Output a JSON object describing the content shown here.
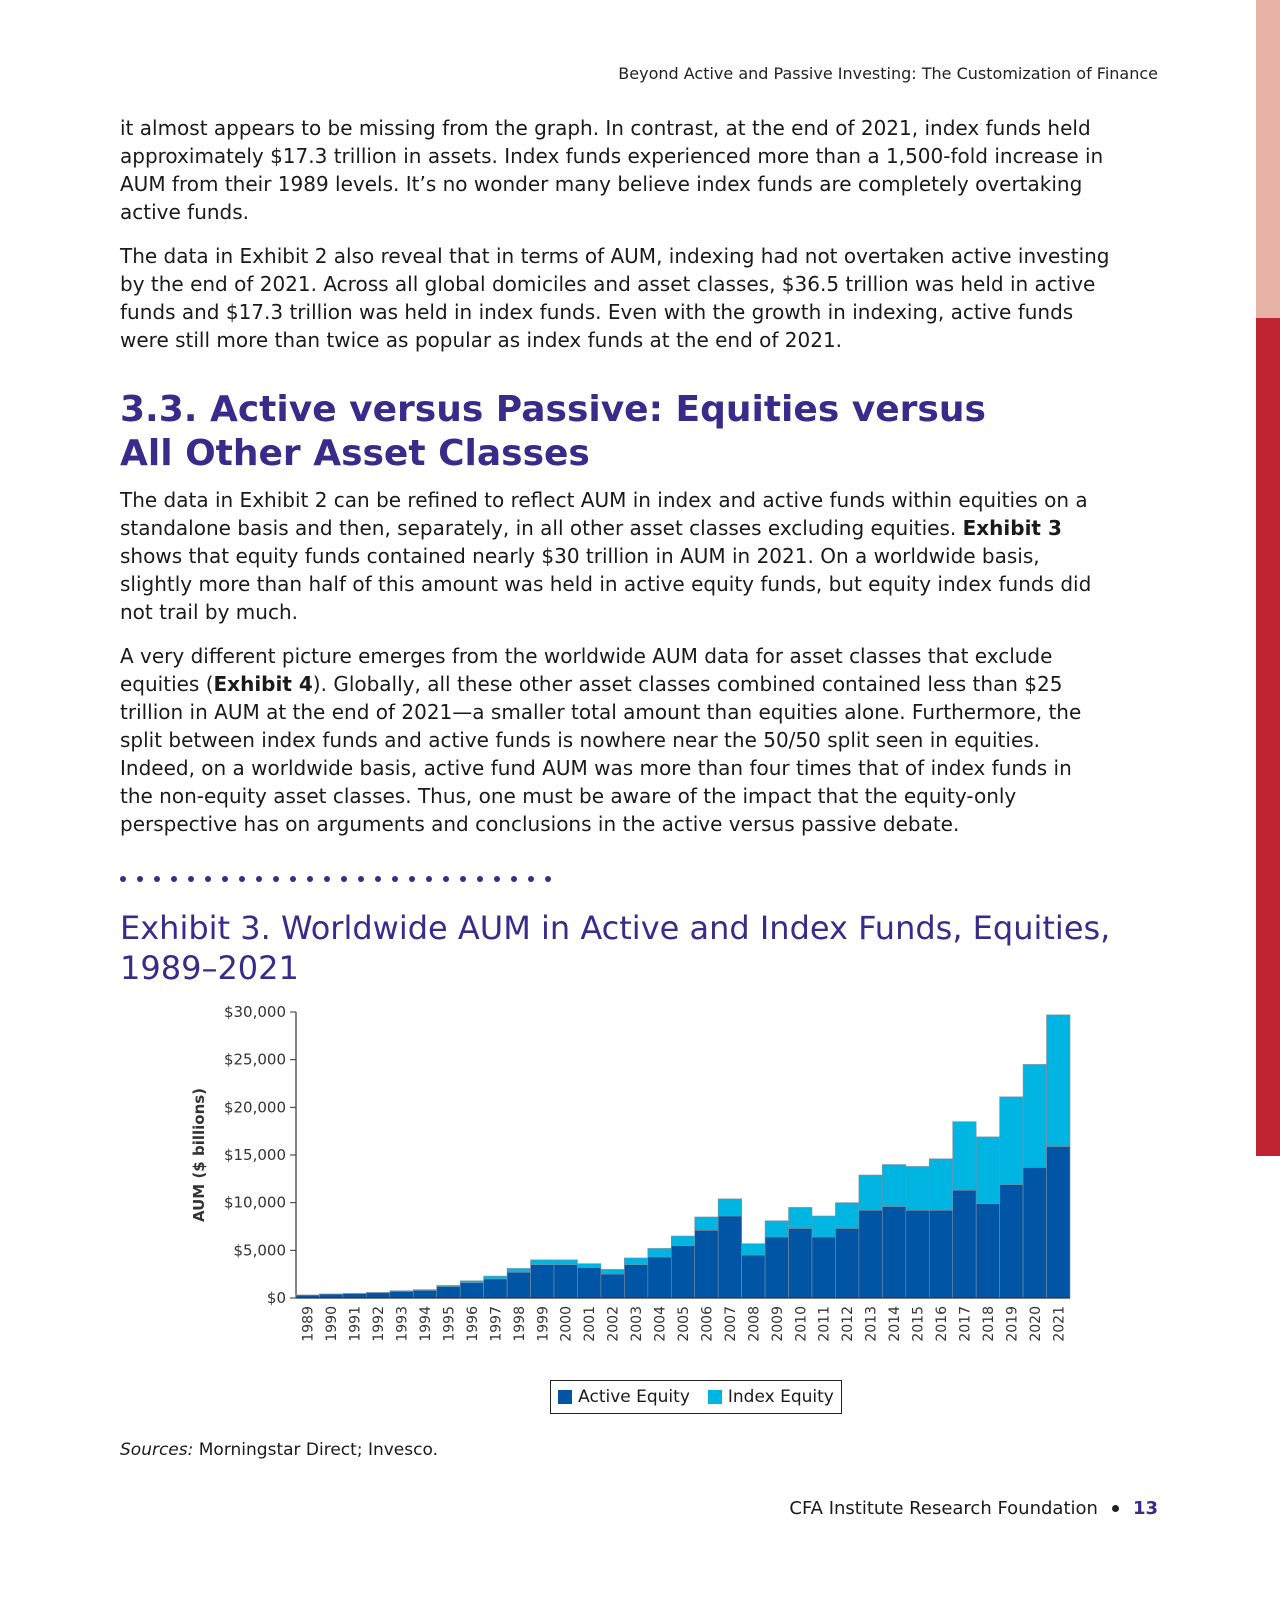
{
  "header": {
    "running_title": "Beyond Active and Passive Investing: The Customization of Finance"
  },
  "paragraphs": {
    "p1": "it almost appears to be missing from the graph. In contrast, at the end of 2021, index funds held approximately $17.3 trillion in assets. Index funds experienced more than a 1,500-fold increase in AUM from their 1989 levels. It’s no wonder many believe index funds are completely overtaking active funds.",
    "p2": "The data in Exhibit 2 also reveal that in terms of AUM, indexing had not overtaken active investing by the end of 2021. Across all global domiciles and asset classes, $36.5 trillion was held in active funds and $17.3 trillion was held in index funds. Even with the growth in indexing, active funds were still more than twice as popular as index funds at the end of 2021.",
    "p3_bold": "Exhibit 3",
    "p3_a": "The data in Exhibit 2 can be refined to reflect AUM in index and active funds within equities on a standalone basis and then, separately, in all other asset classes excluding equities. ",
    "p3_b": " shows that equity funds contained nearly $30 trillion in AUM in 2021. On a worldwide basis, slightly more than half of this amount was held in active equity funds, but equity index funds did not trail by much.",
    "p4_a": "A very different picture emerges from the worldwide AUM data for asset classes that exclude equities (",
    "p4_bold": "Exhibit 4",
    "p4_b": "). Globally, all these other asset classes combined contained less than $25 trillion in AUM at the end of 2021—a smaller total amount than equities alone. Furthermore, the split between index funds and active funds is nowhere near the 50/50 split seen in equities. Indeed, on a worldwide basis, active fund AUM was more than four times that of index funds in the non-equity asset classes. Thus, one must be aware of the impact that the equity-only perspective has on arguments and conclusions in the active versus passive debate."
  },
  "section": {
    "heading_line1": "3.3. Active versus Passive: Equities versus",
    "heading_line2": "All Other Asset Classes"
  },
  "exhibit": {
    "title": "Exhibit 3. Worldwide AUM in Active and Index Funds, Equities, 1989–2021"
  },
  "source": {
    "label": "Sources:",
    "text": " Morningstar Direct; Invesco."
  },
  "footer": {
    "org": "CFA Institute Research Foundation",
    "page": "13"
  },
  "colors": {
    "active": "#0055a5",
    "index": "#00b5e2",
    "heading": "#3a2b8a",
    "accent_red": "#bf2432"
  },
  "chart_data": {
    "type": "bar",
    "stacked": true,
    "ylabel": "AUM ($ billions)",
    "ylim": [
      0,
      30000
    ],
    "yticks": [
      0,
      5000,
      10000,
      15000,
      20000,
      25000,
      30000
    ],
    "ytick_labels": [
      "$0",
      "$5,000",
      "$10,000",
      "$15,000",
      "$20,000",
      "$25,000",
      "$30,000"
    ],
    "categories": [
      "1989",
      "1990",
      "1991",
      "1992",
      "1993",
      "1994",
      "1995",
      "1996",
      "1997",
      "1998",
      "1999",
      "2000",
      "2001",
      "2002",
      "2003",
      "2004",
      "2005",
      "2006",
      "2007",
      "2008",
      "2009",
      "2010",
      "2011",
      "2012",
      "2013",
      "2014",
      "2015",
      "2016",
      "2017",
      "2018",
      "2019",
      "2020",
      "2021"
    ],
    "series": [
      {
        "name": "Active Equity",
        "values": [
          300,
          400,
          450,
          550,
          700,
          800,
          1200,
          1600,
          2000,
          2700,
          3500,
          3500,
          3200,
          2500,
          3500,
          4300,
          5500,
          7100,
          8600,
          4500,
          6400,
          7300,
          6400,
          7300,
          9200,
          9600,
          9200,
          9200,
          11300,
          9900,
          11900,
          13700,
          15900
        ]
      },
      {
        "name": "Index Equity",
        "values": [
          10,
          20,
          30,
          40,
          60,
          80,
          120,
          200,
          300,
          400,
          500,
          500,
          400,
          500,
          700,
          900,
          1000,
          1400,
          1800,
          1200,
          1700,
          2200,
          2200,
          2700,
          3700,
          4400,
          4600,
          5400,
          7200,
          7000,
          9200,
          10800,
          13800
        ]
      }
    ],
    "legend_position": "bottom-center",
    "grid": false
  }
}
